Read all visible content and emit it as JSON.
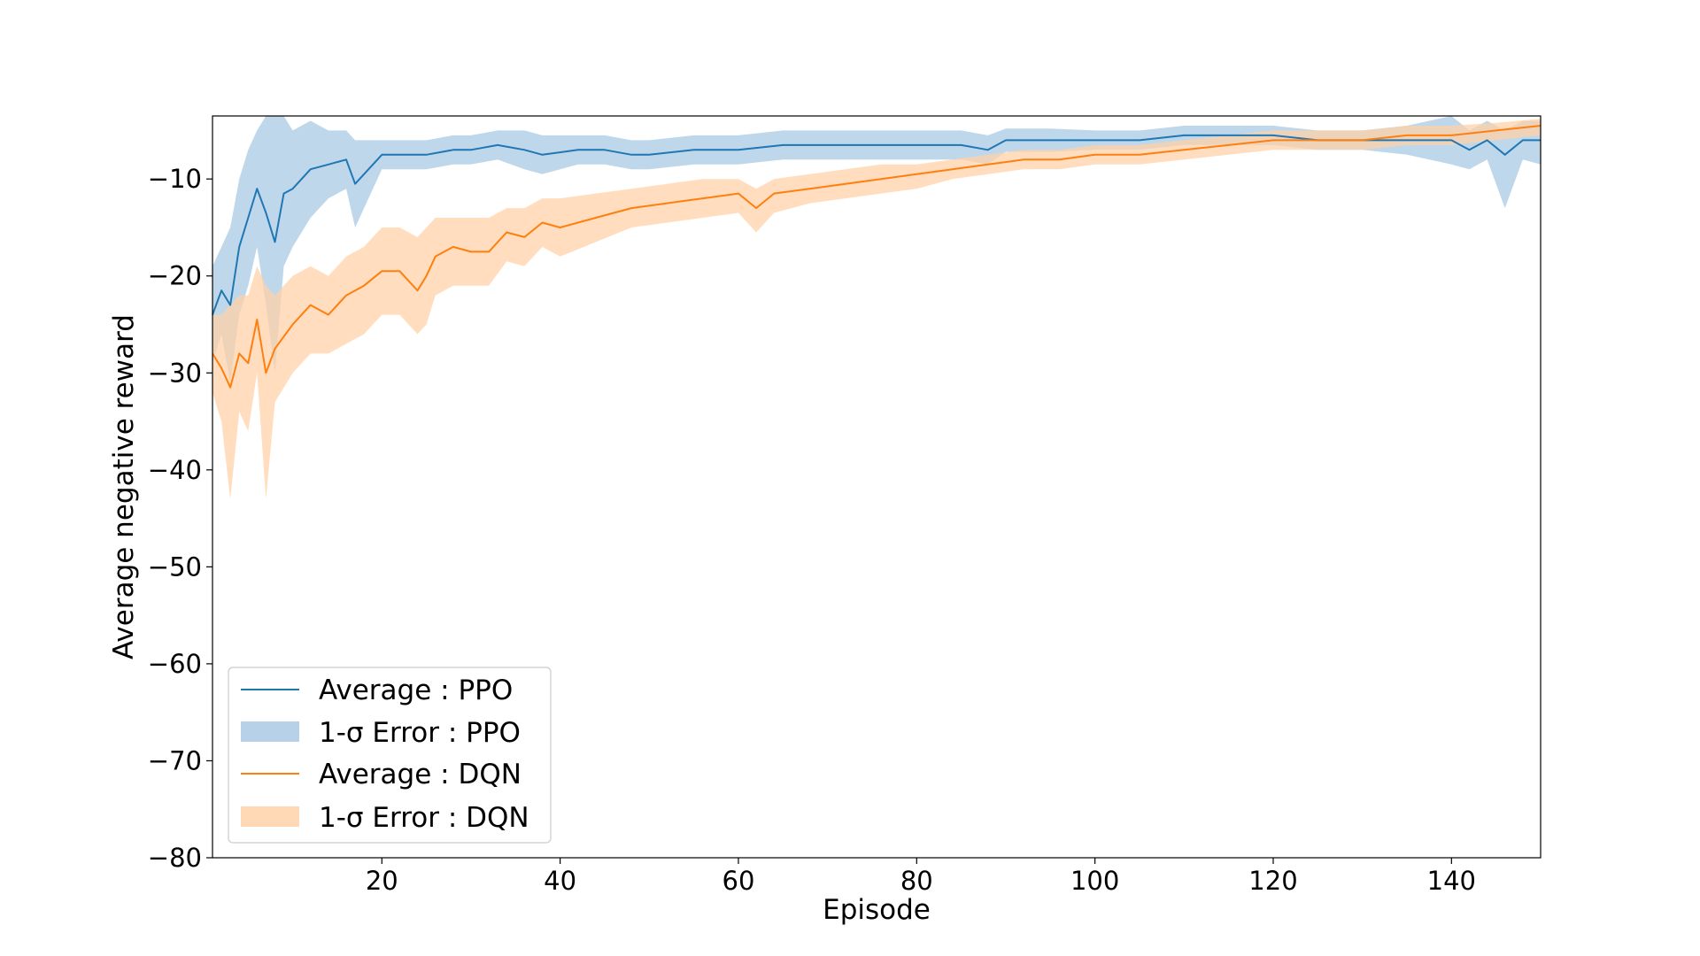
{
  "chart_data": {
    "type": "line",
    "title": "",
    "xlabel": "Episode",
    "ylabel": "Average negative reward",
    "xlim": [
      1,
      150
    ],
    "ylim": [
      -80,
      -3.5
    ],
    "xticks": [
      20,
      40,
      60,
      80,
      100,
      120,
      140
    ],
    "yticks": [
      -80,
      -70,
      -60,
      -50,
      -40,
      -30,
      -20,
      -10
    ],
    "ytick_labels": [
      "−80",
      "−70",
      "−60",
      "−50",
      "−40",
      "−30",
      "−20",
      "−10"
    ],
    "xtick_labels": [
      "20",
      "40",
      "60",
      "80",
      "100",
      "120",
      "140"
    ],
    "grid": false,
    "legend_position": "lower-left",
    "series": [
      {
        "name": "Average : PPO",
        "band_name": "1-σ Error : PPO",
        "color": "#1f77b4",
        "band_color": "#aac9e4",
        "x": [
          1,
          2,
          3,
          4,
          5,
          6,
          7,
          8,
          9,
          10,
          12,
          14,
          16,
          17,
          20,
          22,
          25,
          28,
          30,
          33,
          36,
          38,
          42,
          45,
          48,
          50,
          55,
          60,
          65,
          70,
          75,
          80,
          85,
          88,
          90,
          95,
          100,
          105,
          110,
          115,
          120,
          125,
          130,
          135,
          140,
          142,
          144,
          146,
          148,
          150
        ],
        "y": [
          -24,
          -21.5,
          -23,
          -17,
          -14,
          -11,
          -13.5,
          -16.5,
          -11.5,
          -11,
          -9,
          -8.5,
          -8,
          -10.5,
          -7.5,
          -7.5,
          -7.5,
          -7,
          -7,
          -6.5,
          -7,
          -7.5,
          -7,
          -7,
          -7.5,
          -7.5,
          -7,
          -7,
          -6.5,
          -6.5,
          -6.5,
          -6.5,
          -6.5,
          -7,
          -6,
          -6,
          -6,
          -6,
          -5.5,
          -5.5,
          -5.5,
          -6,
          -6,
          -6,
          -6,
          -7,
          -6,
          -7.5,
          -6,
          -6
        ],
        "upper": [
          -19,
          -17,
          -15,
          -10,
          -7,
          -5,
          -3.5,
          -3.5,
          -3.5,
          -5,
          -4,
          -5,
          -5,
          -6,
          -6,
          -6,
          -6,
          -5.5,
          -5.5,
          -5,
          -5,
          -5.5,
          -5.5,
          -5.5,
          -6,
          -6,
          -5.5,
          -5.5,
          -5,
          -5,
          -5,
          -5,
          -5,
          -5.5,
          -4.8,
          -4.8,
          -5,
          -5,
          -4.5,
          -4.5,
          -4.5,
          -5,
          -5,
          -4.5,
          -3.5,
          -5,
          -4,
          -5,
          -4,
          -4
        ],
        "lower": [
          -29,
          -26,
          -31,
          -24,
          -21,
          -17,
          -23,
          -30,
          -19,
          -17,
          -14,
          -12,
          -11,
          -15,
          -9,
          -9,
          -9,
          -8.5,
          -8.5,
          -8,
          -9,
          -9.5,
          -8.5,
          -8.5,
          -9,
          -9,
          -8.5,
          -8.5,
          -8,
          -8,
          -8,
          -8,
          -8,
          -8.5,
          -7.2,
          -7.2,
          -7,
          -7,
          -6.5,
          -6.5,
          -6.5,
          -7,
          -7,
          -7.5,
          -8.5,
          -9,
          -8,
          -13,
          -8,
          -8.5
        ]
      },
      {
        "name": "Average : DQN",
        "band_name": "1-σ Error : DQN",
        "color": "#ff7f0e",
        "band_color": "#ffd1a8",
        "x": [
          1,
          2,
          3,
          4,
          5,
          6,
          7,
          8,
          10,
          12,
          14,
          16,
          18,
          20,
          22,
          24,
          25,
          26,
          28,
          30,
          32,
          34,
          36,
          38,
          40,
          44,
          48,
          52,
          56,
          60,
          62,
          64,
          68,
          72,
          76,
          80,
          84,
          88,
          92,
          96,
          100,
          105,
          110,
          115,
          120,
          125,
          130,
          135,
          140,
          145,
          150
        ],
        "y": [
          -28,
          -29.5,
          -31.5,
          -28,
          -29,
          -24.5,
          -30,
          -27.5,
          -25,
          -23,
          -24,
          -22,
          -21,
          -19.5,
          -19.5,
          -21.5,
          -20,
          -18,
          -17,
          -17.5,
          -17.5,
          -15.5,
          -16,
          -14.5,
          -15,
          -14,
          -13,
          -12.5,
          -12,
          -11.5,
          -13,
          -11.5,
          -11,
          -10.5,
          -10,
          -9.5,
          -9,
          -8.5,
          -8,
          -8,
          -7.5,
          -7.5,
          -7,
          -6.5,
          -6,
          -6,
          -6,
          -5.5,
          -5.5,
          -5,
          -4.5
        ],
        "upper": [
          -24,
          -24,
          -23,
          -22,
          -22,
          -19,
          -21,
          -22,
          -20,
          -19,
          -20,
          -18,
          -17,
          -15,
          -15,
          -16,
          -15,
          -14,
          -14,
          -14,
          -14,
          -13,
          -13,
          -12,
          -12,
          -11.5,
          -11,
          -10.5,
          -10,
          -10,
          -11,
          -10,
          -9.5,
          -9,
          -8.5,
          -8.5,
          -8,
          -7.5,
          -7,
          -7,
          -6.5,
          -6.5,
          -6,
          -5.5,
          -5,
          -5,
          -5,
          -4.5,
          -4.5,
          -4.2,
          -3.8
        ],
        "lower": [
          -32,
          -35,
          -43,
          -34,
          -36,
          -30,
          -43,
          -33,
          -30,
          -28,
          -28,
          -27,
          -26,
          -24,
          -24,
          -26,
          -25,
          -22,
          -21,
          -21,
          -21,
          -18.5,
          -19,
          -17,
          -18,
          -16.5,
          -15,
          -14.5,
          -14,
          -13.5,
          -15.5,
          -13.5,
          -12.5,
          -12,
          -11.5,
          -11,
          -10,
          -9.5,
          -9,
          -9,
          -8.5,
          -8.5,
          -8,
          -7.5,
          -7,
          -7,
          -7,
          -6.5,
          -6.5,
          -6,
          -5.5
        ]
      }
    ]
  }
}
